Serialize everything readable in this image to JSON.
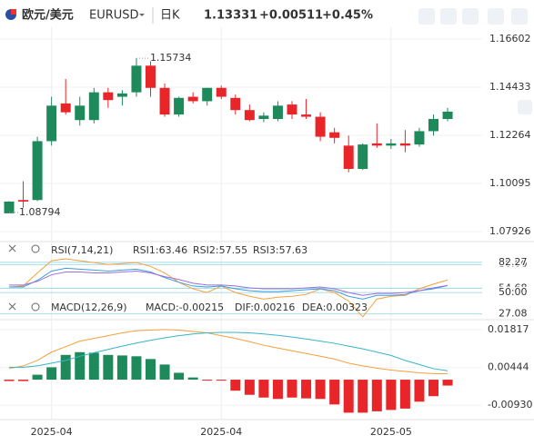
{
  "header": {
    "pair": "欧元/美元",
    "symbol": "EURUSD",
    "period": "日K",
    "change": "+0.00511",
    "change_pct": "+0.45%"
  },
  "chart_data": [
    {
      "type": "candlestick",
      "categories": [
        null,
        null,
        null,
        "2025-04",
        null,
        null,
        null,
        null,
        null,
        null,
        null,
        null,
        null,
        null,
        null,
        "2025-04",
        null,
        null,
        null,
        null,
        null,
        null,
        null,
        null,
        null,
        null,
        null,
        "2025-05",
        null,
        null,
        null,
        null
      ],
      "open": [
        1.0875,
        1.0935,
        1.0935,
        1.12,
        1.137,
        1.1295,
        1.1295,
        1.142,
        1.14,
        1.142,
        1.154,
        1.144,
        1.132,
        1.14,
        1.138,
        1.144,
        1.1395,
        1.134,
        1.13,
        1.13,
        1.1365,
        1.132,
        1.131,
        1.124,
        1.118,
        1.1075,
        1.119,
        1.118,
        1.119,
        1.1185,
        1.1245,
        1.13
      ],
      "high": [
        1.093,
        1.102,
        1.122,
        1.14,
        1.148,
        1.14,
        1.144,
        1.144,
        1.143,
        1.15734,
        1.156,
        1.146,
        1.14,
        1.142,
        1.144,
        1.145,
        1.141,
        1.1365,
        1.133,
        1.138,
        1.138,
        1.139,
        1.133,
        1.126,
        1.1225,
        1.119,
        1.128,
        1.121,
        1.125,
        1.126,
        1.132,
        1.135
      ],
      "low": [
        1.08794,
        1.09,
        1.093,
        1.118,
        1.132,
        1.127,
        1.128,
        1.135,
        1.136,
        1.14,
        1.14,
        1.131,
        1.131,
        1.137,
        1.136,
        1.139,
        1.132,
        1.129,
        1.1285,
        1.129,
        1.13,
        1.13,
        1.12,
        1.119,
        1.106,
        1.107,
        1.117,
        1.1165,
        1.115,
        1.1175,
        1.1225,
        1.129
      ],
      "close": [
        1.0928,
        1.0928,
        1.12,
        1.136,
        1.133,
        1.136,
        1.142,
        1.1385,
        1.1415,
        1.154,
        1.144,
        1.132,
        1.1395,
        1.138,
        1.144,
        1.14,
        1.134,
        1.1295,
        1.1315,
        1.136,
        1.132,
        1.131,
        1.122,
        1.1215,
        1.1075,
        1.1185,
        1.118,
        1.119,
        1.118,
        1.1245,
        1.13,
        1.13331
      ],
      "up_color": "#1e8a5c",
      "down_color": "#e8262a",
      "ylim": [
        1.0752,
        1.1713
      ],
      "yticks": [
        1.16602,
        1.14433,
        1.12264,
        1.10095,
        1.07926
      ]
    },
    {
      "type": "line",
      "title": "RSI(7,14,21)",
      "series": [
        {
          "name": "RSI1:63.46",
          "color": "#f5a03c",
          "values": [
            56,
            57,
            71,
            84,
            86,
            84,
            82,
            80,
            81,
            82,
            78,
            71,
            61,
            54,
            50,
            57,
            50,
            46,
            43,
            45,
            46,
            48,
            54,
            50,
            41,
            24,
            43,
            46,
            47,
            54,
            59,
            63.46
          ]
        },
        {
          "name": "RSI2:57.55",
          "color": "#3a9de0",
          "values": [
            56,
            56,
            63,
            73,
            76,
            75,
            74,
            73,
            74,
            75,
            72,
            66,
            61,
            57,
            56,
            57,
            54,
            52,
            51,
            51,
            52,
            53,
            54,
            52,
            46,
            43,
            47,
            47,
            48,
            52,
            54,
            57.55
          ]
        },
        {
          "name": "RSI3:57.63",
          "color": "#9a6fd8",
          "values": [
            58,
            58,
            62,
            69,
            72,
            72,
            71,
            71,
            72,
            73,
            71,
            67,
            64,
            60,
            58,
            58,
            57,
            55,
            54,
            54,
            54,
            55,
            56,
            54,
            50,
            47,
            49,
            49,
            50,
            52,
            55,
            57.63
          ]
        }
      ],
      "ylim": [
        21,
        88
      ],
      "yticks": [
        {
          "value": 80,
          "label": "80.00"
        },
        82.27,
        54.68,
        {
          "value": 50,
          "label": "50.00"
        },
        27.08
      ]
    },
    {
      "type": "macd",
      "title": "MACD(12,26,9)",
      "histogram": {
        "name": "MACD:-0.00215",
        "color": "#9a6fd8",
        "up_color": "#1e8a5c",
        "down_color": "#e8262a",
        "values": [
          -0.0005,
          -0.0005,
          0.0018,
          0.0045,
          0.009,
          0.01,
          0.0098,
          0.009,
          0.0088,
          0.0085,
          0.0075,
          0.0055,
          0.0025,
          0.0008,
          -0.0003,
          -0.0003,
          -0.004,
          -0.0055,
          -0.0065,
          -0.007,
          -0.0065,
          -0.0068,
          -0.007,
          -0.009,
          -0.012,
          -0.012,
          -0.0115,
          -0.011,
          -0.0105,
          -0.008,
          -0.006,
          -0.00215
        ]
      },
      "series": [
        {
          "name": "DIF:0.00216",
          "color": "#f5a03c",
          "values": [
            0.004,
            0.005,
            0.007,
            0.01,
            0.012,
            0.014,
            0.015,
            0.016,
            0.017,
            0.0178,
            0.018,
            0.0182,
            0.018,
            0.0175,
            0.017,
            0.016,
            0.015,
            0.0138,
            0.0125,
            0.0115,
            0.0105,
            0.0095,
            0.0085,
            0.0075,
            0.006,
            0.005,
            0.0042,
            0.0035,
            0.003,
            0.0025,
            0.0022,
            0.00216
          ]
        },
        {
          "name": "DEA:0.00323",
          "color": "#36b5c9",
          "values": [
            0.0045,
            0.0045,
            0.005,
            0.006,
            0.007,
            0.0085,
            0.0098,
            0.011,
            0.0122,
            0.0133,
            0.0143,
            0.0152,
            0.016,
            0.0166,
            0.017,
            0.0172,
            0.0172,
            0.017,
            0.0166,
            0.0161,
            0.0155,
            0.0148,
            0.014,
            0.0132,
            0.0122,
            0.0112,
            0.01,
            0.0088,
            0.007,
            0.0055,
            0.004,
            0.00323
          ]
        }
      ],
      "ylim": [
        -0.0145,
        0.0218
      ],
      "yticks": [
        0.01817,
        0.00444,
        {
          "value": -0.0093,
          "label": "-0.00930"
        }
      ]
    }
  ]
}
